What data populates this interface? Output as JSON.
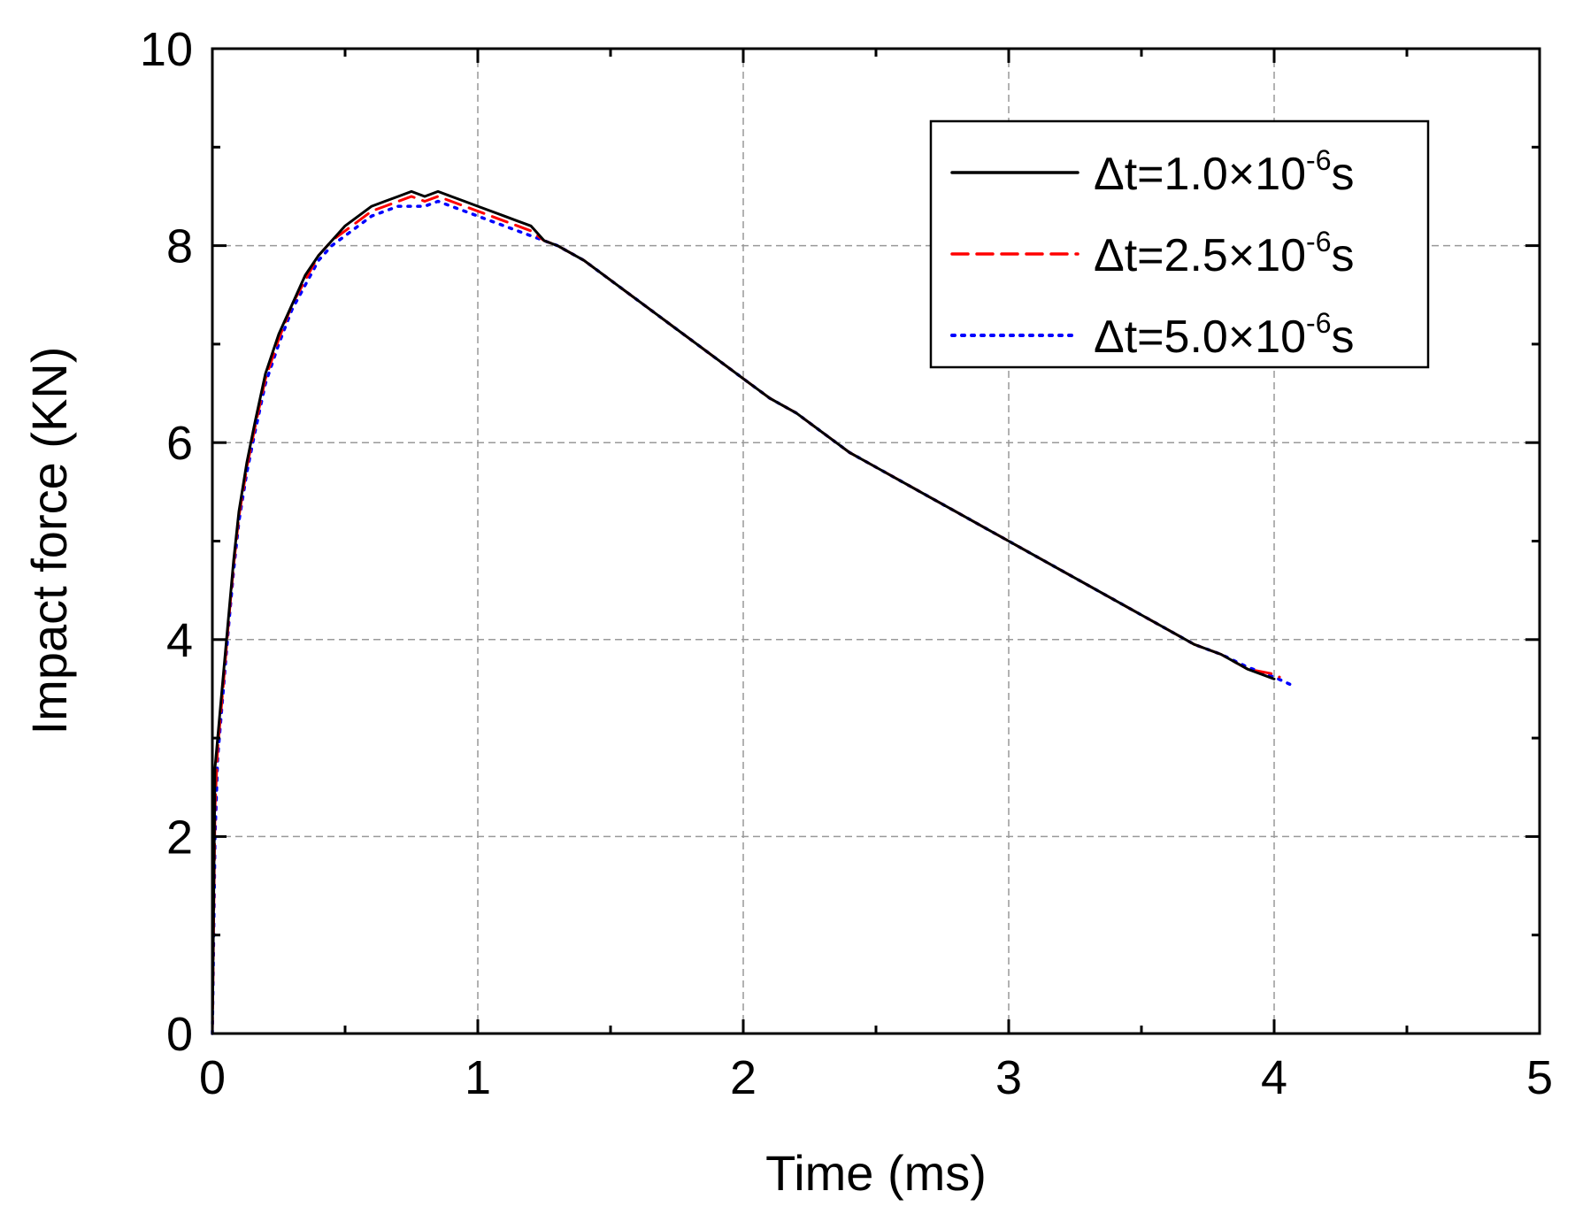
{
  "chart_data": {
    "type": "line",
    "title": "",
    "xlabel": "Time (ms)",
    "ylabel": "Impact force (KN)",
    "xlim": [
      0,
      5
    ],
    "ylim": [
      0,
      10
    ],
    "xticks": [
      0,
      1,
      2,
      3,
      4,
      5
    ],
    "yticks": [
      0,
      2,
      4,
      6,
      8,
      10
    ],
    "xtick_labels": [
      "0",
      "1",
      "2",
      "3",
      "4",
      "5"
    ],
    "ytick_labels": [
      "0",
      "2",
      "4",
      "6",
      "8",
      "10"
    ],
    "grid": true,
    "legend_position": "top-right",
    "series": [
      {
        "name": "Δt=1.0×10-6s",
        "legend": {
          "pre": "Δt=1.0×10",
          "sup": "-6",
          "post": "s"
        },
        "color": "#000000",
        "style": "solid",
        "x": [
          0,
          0.01,
          0.02,
          0.04,
          0.06,
          0.08,
          0.1,
          0.13,
          0.16,
          0.2,
          0.25,
          0.3,
          0.35,
          0.4,
          0.45,
          0.5,
          0.55,
          0.6,
          0.65,
          0.7,
          0.75,
          0.8,
          0.85,
          0.9,
          0.95,
          1.0,
          1.05,
          1.1,
          1.15,
          1.2,
          1.25,
          1.3,
          1.4,
          1.5,
          1.6,
          1.7,
          1.8,
          1.9,
          2.0,
          2.1,
          2.2,
          2.3,
          2.4,
          2.5,
          2.6,
          2.7,
          2.8,
          2.9,
          3.0,
          3.1,
          3.2,
          3.3,
          3.4,
          3.5,
          3.6,
          3.7,
          3.8,
          3.9,
          4.0
        ],
        "y": [
          0,
          2.7,
          3.0,
          3.6,
          4.2,
          4.8,
          5.3,
          5.8,
          6.2,
          6.7,
          7.1,
          7.4,
          7.7,
          7.9,
          8.05,
          8.2,
          8.3,
          8.4,
          8.45,
          8.5,
          8.55,
          8.5,
          8.55,
          8.5,
          8.45,
          8.4,
          8.35,
          8.3,
          8.25,
          8.2,
          8.05,
          8.0,
          7.85,
          7.65,
          7.45,
          7.25,
          7.05,
          6.85,
          6.65,
          6.45,
          6.3,
          6.1,
          5.9,
          5.75,
          5.6,
          5.45,
          5.3,
          5.15,
          5.0,
          4.85,
          4.7,
          4.55,
          4.4,
          4.25,
          4.1,
          3.95,
          3.85,
          3.7,
          3.6
        ]
      },
      {
        "name": "Δt=2.5×10-6s",
        "legend": {
          "pre": "Δt=2.5×10",
          "sup": "-6",
          "post": "s"
        },
        "color": "#ff0000",
        "style": "dashed",
        "x": [
          0,
          0.01,
          0.02,
          0.04,
          0.06,
          0.08,
          0.1,
          0.13,
          0.16,
          0.2,
          0.25,
          0.3,
          0.35,
          0.4,
          0.45,
          0.5,
          0.55,
          0.6,
          0.65,
          0.7,
          0.75,
          0.8,
          0.85,
          0.9,
          0.95,
          1.0,
          1.05,
          1.1,
          1.15,
          1.2,
          1.25,
          1.3,
          1.4,
          1.5,
          1.6,
          1.7,
          1.8,
          1.9,
          2.0,
          2.1,
          2.2,
          2.3,
          2.4,
          2.5,
          2.6,
          2.7,
          2.8,
          2.9,
          3.0,
          3.1,
          3.2,
          3.3,
          3.4,
          3.5,
          3.6,
          3.7,
          3.8,
          3.9,
          4.0,
          4.02
        ],
        "y": [
          0,
          2.3,
          2.9,
          3.5,
          4.15,
          4.75,
          5.25,
          5.75,
          6.15,
          6.65,
          7.05,
          7.4,
          7.65,
          7.9,
          8.05,
          8.15,
          8.25,
          8.35,
          8.4,
          8.45,
          8.5,
          8.45,
          8.5,
          8.45,
          8.4,
          8.35,
          8.3,
          8.25,
          8.2,
          8.15,
          8.05,
          8.0,
          7.85,
          7.65,
          7.45,
          7.25,
          7.05,
          6.85,
          6.65,
          6.45,
          6.3,
          6.1,
          5.9,
          5.75,
          5.6,
          5.45,
          5.3,
          5.15,
          5.0,
          4.85,
          4.7,
          4.55,
          4.4,
          4.25,
          4.1,
          3.95,
          3.85,
          3.7,
          3.65,
          3.62
        ]
      },
      {
        "name": "Δt=5.0×10-6s",
        "legend": {
          "pre": "Δt=5.0×10",
          "sup": "-6",
          "post": "s"
        },
        "color": "#0000ff",
        "style": "dotted",
        "x": [
          0,
          0.01,
          0.02,
          0.04,
          0.06,
          0.08,
          0.1,
          0.13,
          0.16,
          0.2,
          0.25,
          0.3,
          0.35,
          0.4,
          0.45,
          0.5,
          0.55,
          0.6,
          0.65,
          0.7,
          0.75,
          0.8,
          0.85,
          0.9,
          0.95,
          1.0,
          1.05,
          1.1,
          1.15,
          1.2,
          1.25,
          1.3,
          1.4,
          1.5,
          1.6,
          1.7,
          1.8,
          1.9,
          2.0,
          2.1,
          2.2,
          2.3,
          2.4,
          2.5,
          2.6,
          2.7,
          2.8,
          2.9,
          3.0,
          3.1,
          3.2,
          3.3,
          3.4,
          3.5,
          3.6,
          3.7,
          3.8,
          3.9,
          4.0,
          4.08
        ],
        "y": [
          0,
          2.0,
          2.8,
          3.45,
          4.1,
          4.7,
          5.2,
          5.7,
          6.1,
          6.6,
          7.0,
          7.35,
          7.6,
          7.85,
          8.0,
          8.1,
          8.2,
          8.3,
          8.35,
          8.4,
          8.4,
          8.4,
          8.45,
          8.4,
          8.35,
          8.3,
          8.25,
          8.2,
          8.15,
          8.1,
          8.05,
          8.0,
          7.85,
          7.65,
          7.45,
          7.25,
          7.05,
          6.85,
          6.65,
          6.45,
          6.3,
          6.1,
          5.9,
          5.75,
          5.6,
          5.45,
          5.3,
          5.15,
          5.0,
          4.85,
          4.7,
          4.55,
          4.4,
          4.25,
          4.1,
          3.95,
          3.85,
          3.72,
          3.62,
          3.52
        ]
      }
    ]
  }
}
